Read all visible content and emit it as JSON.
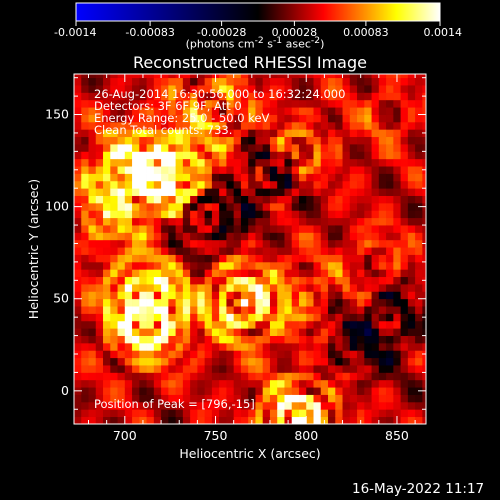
{
  "colorbar": {
    "ticks": [
      "-0.0014",
      "-0.00083",
      "-0.00028",
      "0.00028",
      "0.00083",
      "0.0014"
    ],
    "tick_values": [
      -0.0014,
      -0.00083,
      -0.00028,
      0.00028,
      0.00083,
      0.0014
    ],
    "range": [
      -0.0014,
      0.0014
    ],
    "units_html": "(photons cm<sup>-2</sup> s<sup>-1</sup> asec<sup>-2</sup>)",
    "units": "(photons cm-2 s-1 asec-2)",
    "colors": [
      "#0000ff",
      "#000000",
      "#ff0000",
      "#ffff00",
      "#ffffff"
    ]
  },
  "info_lines": [
    "26-Aug-2014 16:30:56.000 to 16:32:24.000",
    "Detectors: 3F 6F 9F, Att 0",
    "Energy Range: 25.0 - 50.0 keV",
    "Clean     Total counts: 733."
  ],
  "peak_text": "Position of Peak = [796,-15]",
  "timestamp": "16-May-2022 11:17",
  "chart_data": {
    "type": "heatmap",
    "title": "Reconstructed RHESSI Image",
    "xlabel": "Heliocentric X (arcsec)",
    "ylabel": "Heliocentric Y (arcsec)",
    "xlim": [
      672,
      866
    ],
    "ylim": [
      -18,
      172
    ],
    "xticks": [
      700,
      750,
      800,
      850
    ],
    "yticks": [
      0,
      50,
      100,
      150
    ],
    "peak": {
      "x": 796,
      "y": -15
    },
    "colorscale_range": [
      -0.0014,
      0.0014
    ],
    "features": [
      {
        "x": 712,
        "y": 36,
        "value": 0.00115
      },
      {
        "x": 712,
        "y": 52,
        "value": 0.001
      },
      {
        "x": 717,
        "y": 118,
        "value": 0.00105
      },
      {
        "x": 700,
        "y": 120,
        "value": 0.0009
      },
      {
        "x": 734,
        "y": 117,
        "value": 0.0008
      },
      {
        "x": 765,
        "y": 48,
        "value": 0.0012
      },
      {
        "x": 796,
        "y": -15,
        "value": 0.0014
      },
      {
        "x": 748,
        "y": 155,
        "value": 0.0007
      },
      {
        "x": 795,
        "y": 130,
        "value": 0.0006
      },
      {
        "x": 800,
        "y": 50,
        "value": 0.0005
      },
      {
        "x": 690,
        "y": 95,
        "value": 0.0006
      },
      {
        "x": 745,
        "y": 95,
        "value": -0.0007
      },
      {
        "x": 780,
        "y": 118,
        "value": -0.0006
      },
      {
        "x": 845,
        "y": 40,
        "value": -0.0005
      },
      {
        "x": 825,
        "y": 25,
        "value": -0.0004
      },
      {
        "x": 840,
        "y": 70,
        "value": 0.0004
      },
      {
        "x": 845,
        "y": 150,
        "value": 0.0003
      }
    ]
  }
}
